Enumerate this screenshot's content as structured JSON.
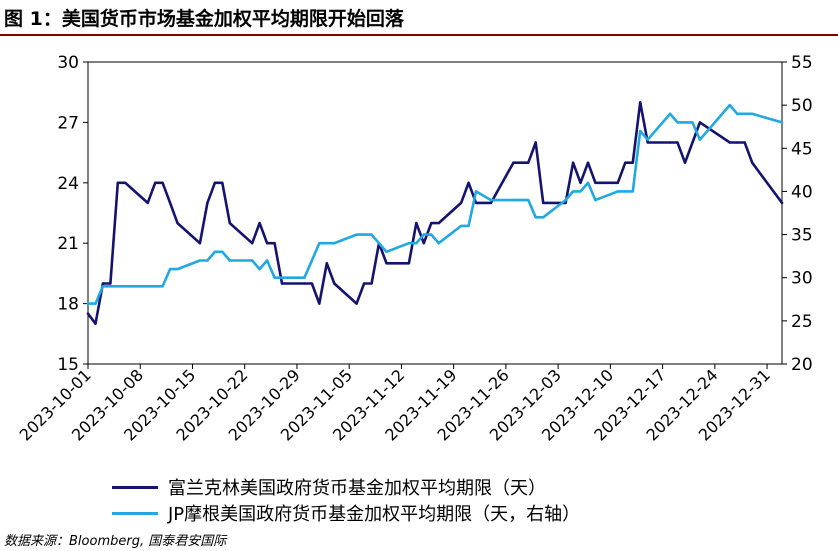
{
  "title": "图 1：美国货币市场基金加权平均期限开始回落",
  "source": "数据来源：Bloomberg, 国泰君安国际",
  "chart_data": {
    "type": "line",
    "title": "图 1：美国货币市场基金加权平均期限开始回落",
    "x_tick_labels": [
      "2023-10-01",
      "2023-10-08",
      "2023-10-15",
      "2023-10-22",
      "2023-10-29",
      "2023-11-05",
      "2023-11-12",
      "2023-11-19",
      "2023-11-26",
      "2023-12-03",
      "2023-12-10",
      "2023-12-17",
      "2023-12-24",
      "2023-12-31"
    ],
    "xlim": [
      "2023-10-01",
      "2024-01-02"
    ],
    "y_left": {
      "min": 15,
      "max": 30,
      "ticks": [
        "15",
        "18",
        "21",
        "24",
        "27",
        "30"
      ]
    },
    "y_right": {
      "min": 20,
      "max": 55,
      "ticks": [
        "20",
        "25",
        "30",
        "35",
        "40",
        "45",
        "50",
        "55"
      ]
    },
    "grid": false,
    "legend_position": "bottom",
    "series": [
      {
        "name": "富兰克林美国政府货币基金加权平均期限（天）",
        "axis": "left",
        "color": "#14146e",
        "points": [
          [
            "2023-10-01",
            17.5
          ],
          [
            "2023-10-02",
            17
          ],
          [
            "2023-10-03",
            19
          ],
          [
            "2023-10-04",
            19
          ],
          [
            "2023-10-05",
            24
          ],
          [
            "2023-10-06",
            24
          ],
          [
            "2023-10-09",
            23
          ],
          [
            "2023-10-10",
            24
          ],
          [
            "2023-10-11",
            24
          ],
          [
            "2023-10-12",
            23
          ],
          [
            "2023-10-13",
            22
          ],
          [
            "2023-10-16",
            21
          ],
          [
            "2023-10-17",
            23
          ],
          [
            "2023-10-18",
            24
          ],
          [
            "2023-10-19",
            24
          ],
          [
            "2023-10-20",
            22
          ],
          [
            "2023-10-23",
            21
          ],
          [
            "2023-10-24",
            22
          ],
          [
            "2023-10-25",
            21
          ],
          [
            "2023-10-26",
            21
          ],
          [
            "2023-10-27",
            19
          ],
          [
            "2023-10-30",
            19
          ],
          [
            "2023-10-31",
            19
          ],
          [
            "2023-11-01",
            18
          ],
          [
            "2023-11-02",
            20
          ],
          [
            "2023-11-03",
            19
          ],
          [
            "2023-11-06",
            18
          ],
          [
            "2023-11-07",
            19
          ],
          [
            "2023-11-08",
            19
          ],
          [
            "2023-11-09",
            21
          ],
          [
            "2023-11-10",
            20
          ],
          [
            "2023-11-13",
            20
          ],
          [
            "2023-11-14",
            22
          ],
          [
            "2023-11-15",
            21
          ],
          [
            "2023-11-16",
            22
          ],
          [
            "2023-11-17",
            22
          ],
          [
            "2023-11-20",
            23
          ],
          [
            "2023-11-21",
            24
          ],
          [
            "2023-11-22",
            23
          ],
          [
            "2023-11-24",
            23
          ],
          [
            "2023-11-27",
            25
          ],
          [
            "2023-11-28",
            25
          ],
          [
            "2023-11-29",
            25
          ],
          [
            "2023-11-30",
            26
          ],
          [
            "2023-12-01",
            23
          ],
          [
            "2023-12-04",
            23
          ],
          [
            "2023-12-05",
            25
          ],
          [
            "2023-12-06",
            24
          ],
          [
            "2023-12-07",
            25
          ],
          [
            "2023-12-08",
            24
          ],
          [
            "2023-12-11",
            24
          ],
          [
            "2023-12-12",
            25
          ],
          [
            "2023-12-13",
            25
          ],
          [
            "2023-12-14",
            28
          ],
          [
            "2023-12-15",
            26
          ],
          [
            "2023-12-18",
            26
          ],
          [
            "2023-12-19",
            26
          ],
          [
            "2023-12-20",
            25
          ],
          [
            "2023-12-21",
            26
          ],
          [
            "2023-12-22",
            27
          ],
          [
            "2023-12-26",
            26
          ],
          [
            "2023-12-27",
            26
          ],
          [
            "2023-12-28",
            26
          ],
          [
            "2023-12-29",
            25
          ],
          [
            "2024-01-02",
            23
          ]
        ]
      },
      {
        "name": "JP摩根美国政府货币基金加权平均期限（天，右轴）",
        "axis": "right",
        "color": "#21a8e0",
        "points": [
          [
            "2023-10-01",
            27
          ],
          [
            "2023-10-02",
            27
          ],
          [
            "2023-10-03",
            29
          ],
          [
            "2023-10-04",
            29
          ],
          [
            "2023-10-05",
            29
          ],
          [
            "2023-10-06",
            29
          ],
          [
            "2023-10-09",
            29
          ],
          [
            "2023-10-10",
            29
          ],
          [
            "2023-10-11",
            29
          ],
          [
            "2023-10-12",
            31
          ],
          [
            "2023-10-13",
            31
          ],
          [
            "2023-10-16",
            32
          ],
          [
            "2023-10-17",
            32
          ],
          [
            "2023-10-18",
            33
          ],
          [
            "2023-10-19",
            33
          ],
          [
            "2023-10-20",
            32
          ],
          [
            "2023-10-23",
            32
          ],
          [
            "2023-10-24",
            31
          ],
          [
            "2023-10-25",
            32
          ],
          [
            "2023-10-26",
            30
          ],
          [
            "2023-10-27",
            30
          ],
          [
            "2023-10-30",
            30
          ],
          [
            "2023-10-31",
            32
          ],
          [
            "2023-11-01",
            34
          ],
          [
            "2023-11-02",
            34
          ],
          [
            "2023-11-03",
            34
          ],
          [
            "2023-11-06",
            35
          ],
          [
            "2023-11-07",
            35
          ],
          [
            "2023-11-08",
            35
          ],
          [
            "2023-11-09",
            34
          ],
          [
            "2023-11-10",
            33
          ],
          [
            "2023-11-13",
            34
          ],
          [
            "2023-11-14",
            34
          ],
          [
            "2023-11-15",
            35
          ],
          [
            "2023-11-16",
            35
          ],
          [
            "2023-11-17",
            34
          ],
          [
            "2023-11-20",
            36
          ],
          [
            "2023-11-21",
            36
          ],
          [
            "2023-11-22",
            40
          ],
          [
            "2023-11-24",
            39
          ],
          [
            "2023-11-27",
            39
          ],
          [
            "2023-11-28",
            39
          ],
          [
            "2023-11-29",
            39
          ],
          [
            "2023-11-30",
            37
          ],
          [
            "2023-12-01",
            37
          ],
          [
            "2023-12-04",
            39
          ],
          [
            "2023-12-05",
            40
          ],
          [
            "2023-12-06",
            40
          ],
          [
            "2023-12-07",
            41
          ],
          [
            "2023-12-08",
            39
          ],
          [
            "2023-12-11",
            40
          ],
          [
            "2023-12-12",
            40
          ],
          [
            "2023-12-13",
            40
          ],
          [
            "2023-12-14",
            47
          ],
          [
            "2023-12-15",
            46
          ],
          [
            "2023-12-18",
            49
          ],
          [
            "2023-12-19",
            48
          ],
          [
            "2023-12-20",
            48
          ],
          [
            "2023-12-21",
            48
          ],
          [
            "2023-12-22",
            46
          ],
          [
            "2023-12-26",
            50
          ],
          [
            "2023-12-27",
            49
          ],
          [
            "2023-12-28",
            49
          ],
          [
            "2023-12-29",
            49
          ],
          [
            "2024-01-02",
            48
          ]
        ]
      }
    ]
  }
}
